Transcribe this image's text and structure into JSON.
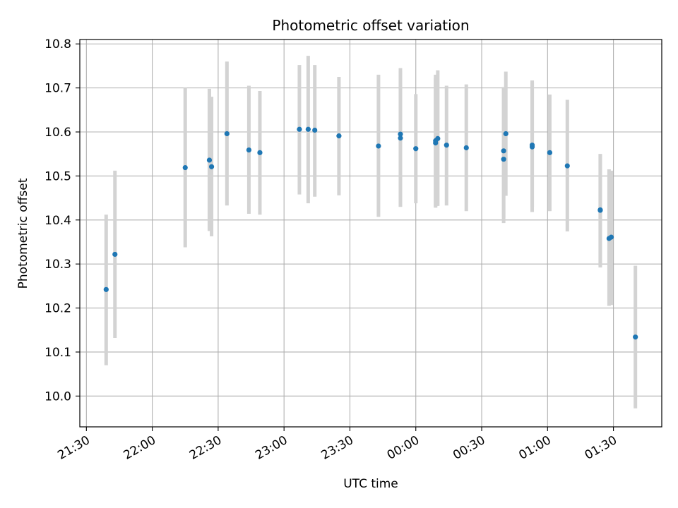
{
  "chart_data": {
    "type": "scatter",
    "title": "Photometric offset variation",
    "xlabel": "UTC time",
    "ylabel": "Photometric offset",
    "grid": true,
    "point_color": "#1f77b4",
    "errorbar_color": "#d3d3d3",
    "x_ticks": [
      "21:30",
      "22:00",
      "22:30",
      "23:00",
      "23:30",
      "00:00",
      "00:30",
      "01:00",
      "01:30"
    ],
    "x_tick_minutes": [
      0,
      30,
      60,
      90,
      120,
      150,
      180,
      210,
      240
    ],
    "xlim_minutes": [
      -3,
      262
    ],
    "y_ticks": [
      "10.0",
      "10.1",
      "10.2",
      "10.3",
      "10.4",
      "10.5",
      "10.6",
      "10.7",
      "10.8"
    ],
    "y_tick_values": [
      10.0,
      10.1,
      10.2,
      10.3,
      10.4,
      10.5,
      10.6,
      10.7,
      10.8
    ],
    "ylim": [
      9.93,
      10.81
    ],
    "points": [
      {
        "time": "21:39",
        "y": 10.242,
        "lo": 10.07,
        "hi": 10.412
      },
      {
        "time": "21:43",
        "y": 10.322,
        "lo": 10.132,
        "hi": 10.512
      },
      {
        "time": "22:15",
        "y": 10.519,
        "lo": 10.338,
        "hi": 10.7
      },
      {
        "time": "22:26",
        "y": 10.536,
        "lo": 10.375,
        "hi": 10.698
      },
      {
        "time": "22:27",
        "y": 10.521,
        "lo": 10.363,
        "hi": 10.68
      },
      {
        "time": "22:34",
        "y": 10.596,
        "lo": 10.433,
        "hi": 10.76
      },
      {
        "time": "22:44",
        "y": 10.559,
        "lo": 10.414,
        "hi": 10.705
      },
      {
        "time": "22:49",
        "y": 10.553,
        "lo": 10.412,
        "hi": 10.693
      },
      {
        "time": "23:07",
        "y": 10.606,
        "lo": 10.458,
        "hi": 10.752
      },
      {
        "time": "23:11",
        "y": 10.606,
        "lo": 10.438,
        "hi": 10.773
      },
      {
        "time": "23:14",
        "y": 10.604,
        "lo": 10.453,
        "hi": 10.752
      },
      {
        "time": "23:25",
        "y": 10.591,
        "lo": 10.456,
        "hi": 10.725
      },
      {
        "time": "23:43",
        "y": 10.568,
        "lo": 10.407,
        "hi": 10.73
      },
      {
        "time": "23:53",
        "y": 10.595,
        "lo": 10.43,
        "hi": 10.745
      },
      {
        "time": "23:53",
        "y": 10.586,
        "lo": 10.43,
        "hi": 10.74
      },
      {
        "time": "00:00",
        "y": 10.562,
        "lo": 10.438,
        "hi": 10.686
      },
      {
        "time": "00:09",
        "y": 10.575,
        "lo": 10.428,
        "hi": 10.722
      },
      {
        "time": "00:09",
        "y": 10.58,
        "lo": 10.43,
        "hi": 10.73
      },
      {
        "time": "00:10",
        "y": 10.585,
        "lo": 10.432,
        "hi": 10.74
      },
      {
        "time": "00:14",
        "y": 10.57,
        "lo": 10.433,
        "hi": 10.705
      },
      {
        "time": "00:23",
        "y": 10.564,
        "lo": 10.42,
        "hi": 10.708
      },
      {
        "time": "00:40",
        "y": 10.538,
        "lo": 10.393,
        "hi": 10.702
      },
      {
        "time": "00:40",
        "y": 10.557,
        "lo": 10.405,
        "hi": 10.7
      },
      {
        "time": "00:41",
        "y": 10.596,
        "lo": 10.455,
        "hi": 10.737
      },
      {
        "time": "00:53",
        "y": 10.57,
        "lo": 10.43,
        "hi": 10.717
      },
      {
        "time": "00:53",
        "y": 10.566,
        "lo": 10.418,
        "hi": 10.713
      },
      {
        "time": "01:01",
        "y": 10.553,
        "lo": 10.42,
        "hi": 10.685
      },
      {
        "time": "01:09",
        "y": 10.523,
        "lo": 10.374,
        "hi": 10.673
      },
      {
        "time": "01:24",
        "y": 10.422,
        "lo": 10.292,
        "hi": 10.55
      },
      {
        "time": "01:24",
        "y": 10.423,
        "lo": 10.295,
        "hi": 10.55
      },
      {
        "time": "01:28",
        "y": 10.358,
        "lo": 10.205,
        "hi": 10.515
      },
      {
        "time": "01:29",
        "y": 10.361,
        "lo": 10.207,
        "hi": 10.512
      },
      {
        "time": "01:40",
        "y": 10.134,
        "lo": 9.972,
        "hi": 10.296
      }
    ]
  }
}
